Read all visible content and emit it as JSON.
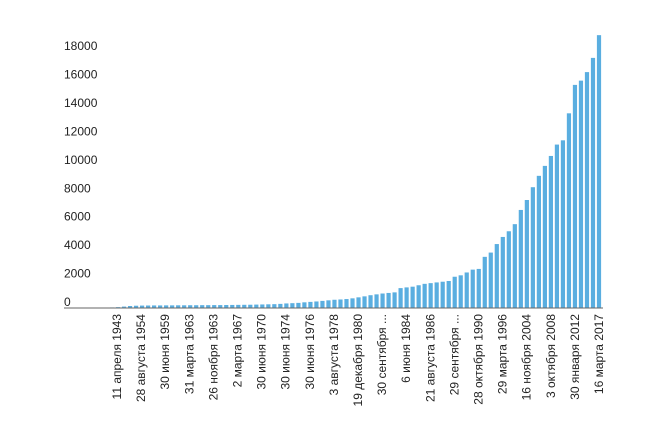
{
  "chart_data": {
    "type": "bar",
    "title": "",
    "xlabel": "",
    "ylabel": "",
    "ylim": [
      0,
      19000
    ],
    "y_ticks": [
      0,
      2000,
      4000,
      6000,
      8000,
      10000,
      12000,
      14000,
      16000,
      18000
    ],
    "y_tick_labels": [
      "0",
      "2000",
      "4000",
      "6000",
      "8000",
      "10000",
      "12000",
      "14000",
      "16000",
      "18000"
    ],
    "grid": false,
    "legend": "none",
    "bar_color": "#5aaee0",
    "x_tick_labels": [
      "11 апреля 1943",
      "28 августа 1954",
      "30 июня 1959",
      "31 марта 1963",
      "26 ноября 1963",
      "2 марта 1967",
      "30 июня 1970",
      "30 июня 1974",
      "30 июня 1976",
      "3 августа 1978",
      "19 декабря 1980",
      "30 сентября ...",
      "6 июня 1984",
      "21 августа 1986",
      "29 сентября ...",
      "28 октября 1990",
      "29 марта 1996",
      "16 ноября 2004",
      "3 октября 2008",
      "30 января 2012",
      "16 марта 2017"
    ],
    "values": [
      10,
      20,
      40,
      60,
      100,
      140,
      160,
      170,
      175,
      180,
      180,
      185,
      185,
      190,
      190,
      195,
      195,
      200,
      200,
      205,
      205,
      210,
      215,
      220,
      225,
      230,
      240,
      250,
      260,
      270,
      290,
      320,
      340,
      360,
      400,
      430,
      460,
      500,
      540,
      580,
      600,
      630,
      680,
      750,
      820,
      900,
      960,
      1020,
      1060,
      1100,
      1400,
      1450,
      1500,
      1600,
      1700,
      1750,
      1800,
      1850,
      1900,
      2200,
      2300,
      2500,
      2700,
      2750,
      3600,
      3900,
      4500,
      5000,
      5400,
      5900,
      6900,
      7600,
      8500,
      9300,
      10000,
      10700,
      11500,
      11800,
      13700,
      15700,
      16000,
      16600,
      17600,
      19200
    ]
  }
}
